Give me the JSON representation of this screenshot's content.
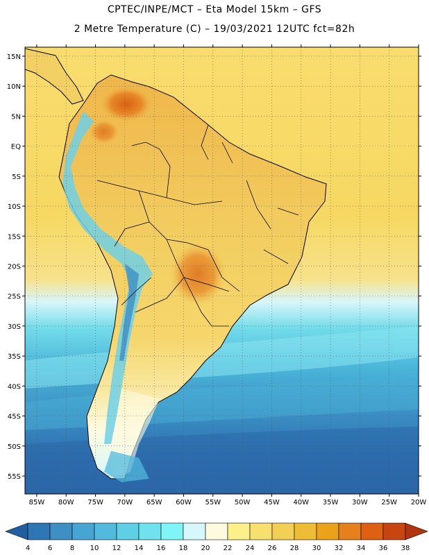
{
  "header": {
    "line1": "CPTEC/INPE/MCT –  Eta Model 15km – GFS",
    "line2": "2 Metre Temperature (C) – 19/03/2021 12UTC fct=82h"
  },
  "axes": {
    "lat_labels": [
      "15N",
      "10N",
      "5N",
      "EQ",
      "5S",
      "10S",
      "15S",
      "20S",
      "25S",
      "30S",
      "35S",
      "40S",
      "45S",
      "50S",
      "55S"
    ],
    "lon_labels": [
      "85W",
      "80W",
      "75W",
      "70W",
      "65W",
      "60W",
      "55W",
      "50W",
      "45W",
      "40W",
      "35W",
      "30W",
      "25W",
      "20W"
    ],
    "lat_range": [
      -58,
      16.5
    ],
    "lon_range": [
      -87,
      -20
    ]
  },
  "colorbar": {
    "labels": [
      "4",
      "6",
      "8",
      "10",
      "12",
      "14",
      "16",
      "18",
      "20",
      "22",
      "24",
      "26",
      "28",
      "30",
      "32",
      "34",
      "36",
      "38"
    ],
    "colors": [
      "#1f5fa0",
      "#2f77b4",
      "#3d8fc4",
      "#46a5d2",
      "#52badc",
      "#5ecfe4",
      "#6fe2ee",
      "#7ff5f7",
      "#d6f8fc",
      "#fdfae0",
      "#fbf08a",
      "#f8e070",
      "#f2cf55",
      "#eebc35",
      "#eba21a",
      "#e5811c",
      "#de6012",
      "#c84410",
      "#b0340e"
    ]
  },
  "colors": {
    "ocean_north": "#f5d663",
    "ocean_south_deep": "#2f6eae",
    "land_warm": "#f0c84a",
    "hot_spot": "#d9651a",
    "andes_cold": "#6fd0e6"
  }
}
